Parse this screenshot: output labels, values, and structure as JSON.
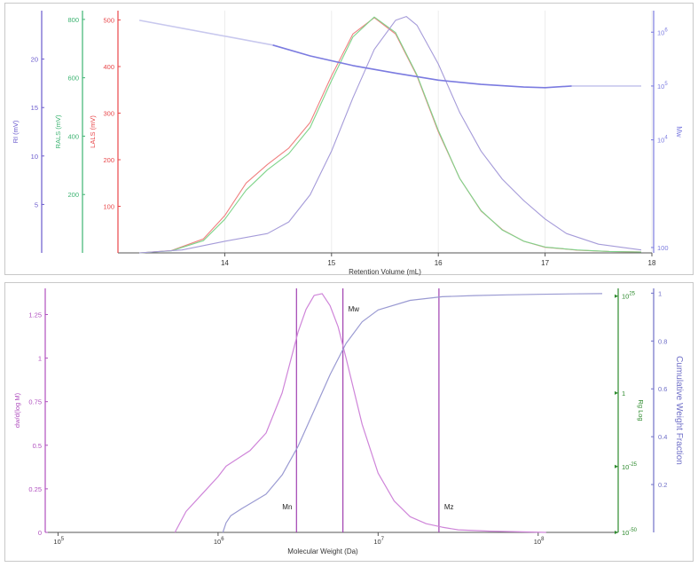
{
  "colors": {
    "ri": "#6a5acd",
    "rals": "#3cb371",
    "lals": "#e8474a",
    "mw": "#7b7be0",
    "mw_light": "#c8c8ee",
    "lals_curve": "#f08080",
    "rals_curve": "#7fd48a",
    "ri_curve": "#a59bd9",
    "dwd": "#b04fbf",
    "dwd_curve": "#cf85d9",
    "rg": "#2e8b2e",
    "cum": "#7070c8",
    "cum_curve": "#9a9ad2",
    "marker": "#a040b0",
    "axis": "#555555",
    "grid": "#ececec"
  },
  "chart_data": [
    {
      "type": "line",
      "xlabel": "Retention Volume (mL)",
      "xlim": [
        13,
        18
      ],
      "x_ticks": [
        "14",
        "15",
        "16",
        "17",
        "18"
      ],
      "axes": {
        "ri": {
          "label": "RI (mV)",
          "ylim": [
            0,
            25
          ],
          "ticks": [
            "5",
            "10",
            "15",
            "20"
          ]
        },
        "rals": {
          "label": "RALS (mV)",
          "ylim": [
            0,
            830
          ],
          "ticks": [
            "200",
            "400",
            "600",
            "800"
          ]
        },
        "lals": {
          "label": "LALS (mV)",
          "ylim": [
            0,
            520
          ],
          "ticks": [
            "100",
            "200",
            "300",
            "400",
            "500"
          ]
        },
        "mw": {
          "label": "Mw",
          "scale": "log",
          "ylim_log10": [
            1.9,
            6.4
          ],
          "ticks": [
            {
              "base": "10",
              "exp": "6",
              "v": 6
            },
            {
              "base": "10",
              "exp": "5",
              "v": 5
            },
            {
              "base": "10",
              "exp": "4",
              "v": 4
            },
            {
              "base": "100",
              "exp": "",
              "v": 2
            }
          ]
        }
      },
      "series": [
        {
          "axis": "lals",
          "color_key": "lals_curve",
          "x": [
            13.2,
            13.5,
            13.8,
            14.0,
            14.2,
            14.4,
            14.6,
            14.8,
            15.0,
            15.2,
            15.4,
            15.6,
            15.8,
            16.0,
            16.2,
            16.4,
            16.6,
            16.8,
            17.0,
            17.3,
            17.6,
            17.9
          ],
          "y": [
            0,
            5,
            30,
            80,
            150,
            190,
            225,
            280,
            380,
            470,
            505,
            470,
            380,
            260,
            160,
            90,
            50,
            25,
            12,
            6,
            3,
            2
          ]
        },
        {
          "axis": "rals",
          "color_key": "rals_curve",
          "x": [
            13.2,
            13.5,
            13.8,
            14.0,
            14.2,
            14.4,
            14.6,
            14.8,
            15.0,
            15.2,
            15.4,
            15.6,
            15.8,
            16.0,
            16.2,
            16.4,
            16.6,
            16.8,
            17.0,
            17.3,
            17.6,
            17.9
          ],
          "y": [
            0,
            7,
            42,
            115,
            215,
            285,
            340,
            430,
            590,
            740,
            808,
            755,
            610,
            420,
            255,
            145,
            78,
            40,
            20,
            10,
            5,
            3
          ]
        },
        {
          "axis": "ri",
          "color_key": "ri_curve",
          "x": [
            13.2,
            13.6,
            14.0,
            14.4,
            14.6,
            14.8,
            15.0,
            15.2,
            15.4,
            15.6,
            15.7,
            15.8,
            16.0,
            16.2,
            16.4,
            16.6,
            16.8,
            17.0,
            17.2,
            17.5,
            17.9
          ],
          "y": [
            0,
            0.3,
            1.2,
            2.0,
            3.2,
            6.0,
            10.5,
            16.0,
            21.0,
            24.0,
            24.4,
            23.5,
            19.5,
            14.5,
            10.5,
            7.6,
            5.4,
            3.5,
            2.0,
            0.9,
            0.3
          ]
        },
        {
          "axis": "mw",
          "color_key": "mw_light",
          "x": [
            13.2,
            14.45
          ],
          "y": [
            6.22,
            5.76
          ]
        },
        {
          "axis": "mw",
          "color_key": "mw",
          "x": [
            14.45,
            14.8,
            15.2,
            15.6,
            16.0,
            16.4,
            16.8,
            17.0,
            17.25
          ],
          "y": [
            5.76,
            5.56,
            5.38,
            5.24,
            5.11,
            5.03,
            4.98,
            4.97,
            5.0
          ]
        },
        {
          "axis": "mw",
          "color_key": "mw_light",
          "x": [
            17.25,
            17.9
          ],
          "y": [
            5.0,
            5.0
          ]
        }
      ]
    },
    {
      "type": "line",
      "xlabel": "Molecular Weight (Da)",
      "xscale": "log",
      "xlim_log10": [
        4.92,
        8.5
      ],
      "x_ticks": [
        {
          "base": "10",
          "exp": "5",
          "v": 5
        },
        {
          "base": "10",
          "exp": "6",
          "v": 6
        },
        {
          "base": "10",
          "exp": "7",
          "v": 7
        },
        {
          "base": "10",
          "exp": "8",
          "v": 8
        }
      ],
      "axes": {
        "dwd": {
          "label": "dw/d(log M)",
          "ylim": [
            0,
            1.4
          ],
          "ticks": [
            "0",
            "0.25",
            "0.5",
            "0.75",
            "1",
            "1.25"
          ]
        },
        "rg": {
          "label": "Rg Log",
          "scale": "log",
          "ylim_log10": [
            -36,
            27
          ],
          "ticks": [
            {
              "base": "10",
              "exp": "25",
              "v": 25
            },
            {
              "base": "1",
              "exp": "",
              "v": 0
            },
            {
              "base": "10",
              "exp": "-25",
              "v": -19
            },
            {
              "base": "10",
              "exp": "-50",
              "v": -36
            }
          ]
        },
        "cum": {
          "label": "Cumulative Weight Fraction",
          "ylim": [
            0,
            1.02
          ],
          "ticks": [
            "0.2",
            "0.4",
            "0.6",
            "0.8",
            "1"
          ]
        }
      },
      "markers": [
        {
          "label": "Mn",
          "x": 6.49
        },
        {
          "label": "Mw",
          "x": 6.78
        },
        {
          "label": "Mz",
          "x": 7.38
        }
      ],
      "series": [
        {
          "axis": "dwd",
          "color_key": "dwd_curve",
          "x": [
            5.73,
            5.8,
            5.9,
            6.0,
            6.05,
            6.1,
            6.2,
            6.3,
            6.4,
            6.5,
            6.55,
            6.6,
            6.65,
            6.7,
            6.75,
            6.8,
            6.9,
            7.0,
            7.1,
            7.2,
            7.3,
            7.4,
            7.5,
            7.7,
            7.9,
            8.05
          ],
          "y": [
            0,
            0.12,
            0.22,
            0.32,
            0.38,
            0.41,
            0.47,
            0.57,
            0.8,
            1.15,
            1.28,
            1.36,
            1.37,
            1.3,
            1.18,
            1.0,
            0.62,
            0.34,
            0.18,
            0.09,
            0.05,
            0.03,
            0.015,
            0.007,
            0.003,
            0.0
          ]
        },
        {
          "axis": "cum",
          "color_key": "cum_curve",
          "x": [
            6.03,
            6.05,
            6.08,
            6.15,
            6.2,
            6.3,
            6.4,
            6.5,
            6.6,
            6.7,
            6.8,
            6.9,
            7.0,
            7.2,
            7.4,
            7.6,
            7.8,
            8.0,
            8.2,
            8.4
          ],
          "y": [
            0,
            0.04,
            0.07,
            0.1,
            0.12,
            0.16,
            0.24,
            0.36,
            0.51,
            0.66,
            0.79,
            0.88,
            0.93,
            0.97,
            0.985,
            0.99,
            0.993,
            0.995,
            0.997,
            0.998
          ]
        }
      ]
    }
  ]
}
